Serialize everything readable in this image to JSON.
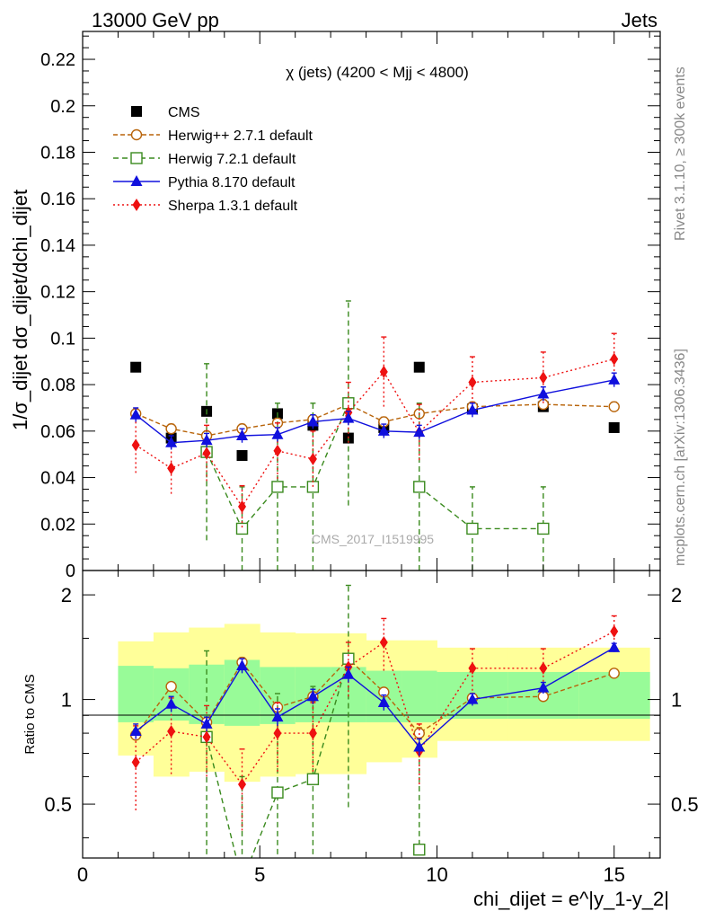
{
  "header": {
    "left": "13000 GeV pp",
    "right": "Jets"
  },
  "side_text": {
    "rivet": "Rivet 3.1.10, ≥ 300k events",
    "mcplots": "mcplots.cern.ch [arXiv:1306.3436]"
  },
  "watermark": "CMS_2017_I1519995",
  "chart_data": {
    "type": "scatter",
    "title": "χ (jets) (4200 < Mjj < 4800)",
    "ylabel_main": "1/σ_dijet dσ_dijet/dchi_dijet",
    "ylabel_ratio": "Ratio to CMS",
    "xlabel": "chi_dijet = e^|y_1-y_2|",
    "xlim": [
      0,
      16.3
    ],
    "ylim_main": [
      0,
      0.232
    ],
    "ylim_ratio": [
      0.35,
      2.35
    ],
    "y_ticks_main": [
      "0",
      "0.02",
      "0.04",
      "0.06",
      "0.08",
      "0.1",
      "0.12",
      "0.14",
      "0.16",
      "0.18",
      "0.2",
      "0.22"
    ],
    "y_ticks_ratio": [
      "0.5",
      "1",
      "2"
    ],
    "x_ticks": [
      "0",
      "5",
      "10",
      "15"
    ],
    "bins": [
      [
        1,
        2
      ],
      [
        2,
        3
      ],
      [
        3,
        4
      ],
      [
        4,
        5
      ],
      [
        5,
        6
      ],
      [
        6,
        7
      ],
      [
        7,
        8
      ],
      [
        8,
        9
      ],
      [
        9,
        10
      ],
      [
        10,
        12
      ],
      [
        12,
        14
      ],
      [
        14,
        16
      ]
    ],
    "x": [
      1.5,
      2.5,
      3.5,
      4.5,
      5.5,
      6.5,
      7.5,
      8.5,
      9.5,
      11,
      13,
      15
    ],
    "band_inner": [
      [
        0.86,
        1.25
      ],
      [
        0.87,
        1.23
      ],
      [
        0.85,
        1.26
      ],
      [
        0.84,
        1.3
      ],
      [
        0.85,
        1.24
      ],
      [
        0.86,
        1.24
      ],
      [
        0.86,
        1.24
      ],
      [
        0.86,
        1.21
      ],
      [
        0.86,
        1.21
      ],
      [
        0.88,
        1.2
      ],
      [
        0.88,
        1.2
      ],
      [
        0.88,
        1.2
      ]
    ],
    "band_outer": [
      [
        0.69,
        1.47
      ],
      [
        0.6,
        1.56
      ],
      [
        0.62,
        1.61
      ],
      [
        0.58,
        1.65
      ],
      [
        0.6,
        1.56
      ],
      [
        0.61,
        1.55
      ],
      [
        0.61,
        1.55
      ],
      [
        0.66,
        1.48
      ],
      [
        0.68,
        1.48
      ],
      [
        0.76,
        1.41
      ],
      [
        0.76,
        1.41
      ],
      [
        0.76,
        1.41
      ]
    ],
    "series": [
      {
        "name": "CMS",
        "color": "#000000",
        "marker": "square-filled",
        "values": [
          0.0875,
          0.057,
          0.0685,
          0.0495,
          0.0675,
          0.0625,
          0.057,
          0.0615,
          0.0875,
          0.0695,
          0.0705,
          0.0615
        ],
        "ratio": [
          1,
          1,
          1,
          1,
          1,
          1,
          1,
          1,
          1,
          1,
          1,
          1
        ]
      },
      {
        "name": "Herwig++ 2.7.1 default",
        "color": "#b8640a",
        "marker": "circle-open",
        "dash": "5,3",
        "values": [
          0.0675,
          0.061,
          0.058,
          0.061,
          0.0635,
          0.065,
          0.0715,
          0.064,
          0.0675,
          0.0705,
          0.0715,
          0.0705
        ],
        "errors": [
          0.002,
          0.002,
          0.002,
          0.002,
          0.002,
          0.002,
          0.002,
          0.002,
          0.002,
          0.002,
          0.002,
          0.002
        ],
        "ratio": [
          0.79,
          1.09,
          0.86,
          1.28,
          0.95,
          1.02,
          1.31,
          1.05,
          0.8,
          1.01,
          1.02,
          1.19
        ],
        "ratio_errors": [
          0.03,
          0.03,
          0.03,
          0.04,
          0.03,
          0.03,
          0.03,
          0.03,
          0.03,
          0.03,
          0.03,
          0.03
        ]
      },
      {
        "name": "Herwig 7.2.1 default",
        "color": "#3a8a1e",
        "marker": "square-open",
        "dash": "6,4",
        "values": [
          null,
          null,
          0.051,
          0.018,
          0.036,
          0.036,
          0.072,
          null,
          0.036,
          0.018,
          0.018,
          null
        ],
        "errors": [
          null,
          null,
          0.038,
          0.018,
          0.036,
          0.036,
          0.044,
          null,
          0.036,
          0.018,
          0.018,
          null
        ],
        "ratio": [
          null,
          null,
          0.78,
          0.3,
          0.54,
          0.59,
          1.31,
          null,
          0.37,
          null,
          null,
          null
        ],
        "ratio_errors": [
          null,
          null,
          0.6,
          0.3,
          0.5,
          0.5,
          0.82,
          null,
          0.37,
          null,
          null,
          null
        ]
      },
      {
        "name": "Pythia 8.170 default",
        "color": "#1010dd",
        "marker": "triangle-filled",
        "dash": "",
        "values": [
          0.067,
          0.055,
          0.056,
          0.058,
          0.0585,
          0.064,
          0.0655,
          0.06,
          0.0595,
          0.069,
          0.076,
          0.082
        ],
        "errors": [
          0.003,
          0.003,
          0.003,
          0.003,
          0.003,
          0.003,
          0.003,
          0.003,
          0.003,
          0.003,
          0.003,
          0.003
        ],
        "ratio": [
          0.81,
          0.97,
          0.85,
          1.25,
          0.89,
          1.02,
          1.18,
          0.98,
          0.73,
          1.0,
          1.08,
          1.41
        ],
        "ratio_errors": [
          0.04,
          0.05,
          0.04,
          0.06,
          0.05,
          0.05,
          0.06,
          0.05,
          0.04,
          0.04,
          0.04,
          0.04
        ]
      },
      {
        "name": "Sherpa 1.3.1 default",
        "color": "#ee1111",
        "marker": "diamond-filled",
        "dash": "2,3",
        "values": [
          0.054,
          0.044,
          0.0505,
          0.0275,
          0.0515,
          0.048,
          0.068,
          0.0855,
          0.0595,
          0.081,
          0.083,
          0.091
        ],
        "errors": [
          0.012,
          0.011,
          0.012,
          0.009,
          0.012,
          0.012,
          0.013,
          0.015,
          0.012,
          0.011,
          0.011,
          0.011
        ],
        "ratio": [
          0.66,
          0.81,
          0.78,
          0.57,
          0.8,
          0.8,
          1.24,
          1.46,
          0.71,
          1.23,
          1.23,
          1.57
        ],
        "ratio_errors": [
          0.18,
          0.2,
          0.18,
          0.15,
          0.18,
          0.18,
          0.22,
          0.25,
          0.14,
          0.17,
          0.17,
          0.17
        ]
      }
    ]
  }
}
